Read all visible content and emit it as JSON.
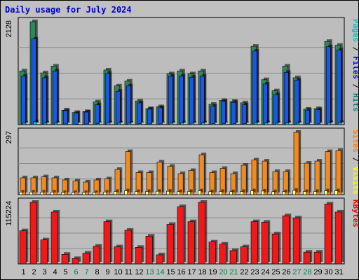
{
  "chart_data": {
    "type": "bar",
    "title": "Daily usage for July 2024",
    "categories": [
      "1",
      "2",
      "3",
      "4",
      "5",
      "6",
      "7",
      "8",
      "9",
      "10",
      "11",
      "12",
      "13",
      "14",
      "15",
      "16",
      "17",
      "18",
      "19",
      "20",
      "21",
      "22",
      "23",
      "24",
      "25",
      "26",
      "27",
      "28",
      "29",
      "30",
      "31"
    ],
    "weekend_days": [
      "6",
      "7",
      "13",
      "14",
      "20",
      "21",
      "27",
      "28"
    ],
    "panels": [
      {
        "id": "top",
        "scale_max_label": "2128",
        "ymax": 2128,
        "legend": [
          {
            "text": "Pages",
            "color": "#00c0c0"
          },
          {
            "text": " / ",
            "color": "#000000"
          },
          {
            "text": "Files",
            "color": "#0000ff"
          },
          {
            "text": " / ",
            "color": "#000000"
          },
          {
            "text": "Hits",
            "color": "#008080"
          }
        ],
        "series": [
          {
            "name": "Hits",
            "color": "#2b8a57",
            "values": [
              1110,
              2128,
              1070,
              1210,
              300,
              250,
              270,
              470,
              1130,
              800,
              900,
              490,
              330,
              370,
              1050,
              1110,
              1050,
              1110,
              420,
              500,
              480,
              450,
              1620,
              930,
              700,
              1210,
              970,
              320,
              330,
              1720,
              1640
            ]
          },
          {
            "name": "Files",
            "color": "#1a57e8",
            "values": [
              1000,
              1770,
              970,
              1110,
              290,
              240,
              260,
              410,
              1060,
              690,
              800,
              450,
              320,
              350,
              1000,
              1000,
              980,
              1000,
              380,
              480,
              460,
              410,
              1520,
              840,
              620,
              1080,
              920,
              300,
              310,
              1610,
              1540
            ]
          },
          {
            "name": "Pages",
            "color": "#00c0c0",
            "values": [
              30,
              60,
              30,
              30,
              15,
              10,
              15,
              20,
              35,
              30,
              30,
              20,
              15,
              15,
              30,
              35,
              30,
              35,
              20,
              20,
              20,
              20,
              40,
              35,
              30,
              35,
              30,
              15,
              15,
              40,
              40
            ]
          }
        ]
      },
      {
        "id": "middle",
        "scale_max_label": "297",
        "ymax": 297,
        "legend": [
          {
            "text": "Sites",
            "color": "#ff8000"
          },
          {
            "text": " / ",
            "color": "#000000"
          },
          {
            "text": "Visits",
            "color": "#ffff00"
          }
        ],
        "series": [
          {
            "name": "Visits",
            "color": "#f28a1e",
            "values": [
              80,
              80,
              85,
              80,
              70,
              65,
              60,
              70,
              75,
              120,
              205,
              105,
              105,
              155,
              135,
              100,
              115,
              190,
              105,
              125,
              100,
              140,
              165,
              160,
              110,
              110,
              297,
              150,
              160,
              205,
              210
            ]
          },
          {
            "name": "Sites",
            "color": "#ffff80",
            "values": [
              12,
              12,
              12,
              12,
              10,
              10,
              10,
              10,
              12,
              15,
              18,
              15,
              15,
              16,
              16,
              14,
              15,
              18,
              14,
              15,
              14,
              15,
              18,
              17,
              14,
              14,
              20,
              15,
              15,
              18,
              18
            ]
          }
        ]
      },
      {
        "id": "bottom",
        "scale_max_label": "115224",
        "ymax": 115224,
        "legend": [
          {
            "text": "KBytes",
            "color": "#ff0000"
          }
        ],
        "series": [
          {
            "name": "KBytes",
            "color": "#f01818",
            "values": [
              62000,
              115224,
              45000,
              97000,
              18000,
              10000,
              20000,
              33000,
              79000,
              32000,
              63000,
              31000,
              52000,
              17000,
              74000,
              107000,
              79000,
              115224,
              41000,
              37000,
              25000,
              32000,
              79000,
              78000,
              56000,
              90000,
              86000,
              22000,
              22000,
              112000,
              97000
            ]
          }
        ]
      }
    ]
  }
}
